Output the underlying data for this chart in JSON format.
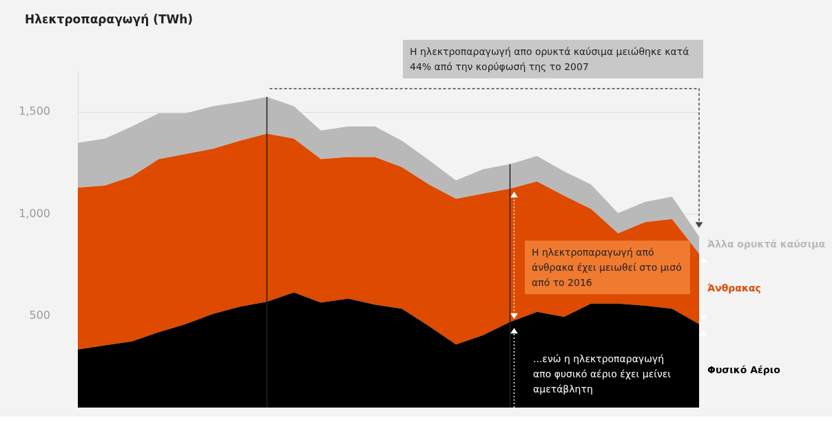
{
  "chart_data": {
    "type": "area",
    "title": "Ηλεκτροπαραγωγή (TWh)",
    "stacked": true,
    "categories": [
      null,
      null,
      null,
      null,
      null,
      null,
      null,
      null,
      null,
      null,
      null,
      null,
      null,
      null,
      null,
      null,
      null,
      null,
      null,
      null,
      null,
      null,
      null,
      null
    ],
    "series": [
      {
        "name": "Φυσικό Αέριο",
        "color": "#000000",
        "values": [
          335,
          355,
          375,
          420,
          460,
          510,
          545,
          570,
          615,
          565,
          585,
          555,
          535,
          450,
          360,
          405,
          470,
          520,
          495,
          560,
          560,
          550,
          535,
          460
        ]
      },
      {
        "name": "Άνθρακας",
        "color": "#dd4a00",
        "values": [
          795,
          785,
          810,
          850,
          835,
          810,
          815,
          825,
          755,
          705,
          695,
          725,
          695,
          695,
          715,
          695,
          655,
          640,
          595,
          465,
          345,
          410,
          440,
          345
        ]
      },
      {
        "name": "Άλλα ορυκτά καύσιμα",
        "color": "#b9b9b9",
        "values": [
          220,
          230,
          245,
          225,
          200,
          210,
          190,
          180,
          160,
          140,
          150,
          150,
          130,
          120,
          90,
          120,
          120,
          125,
          120,
          120,
          100,
          100,
          110,
          85
        ]
      }
    ],
    "ylim": [
      50,
      1700
    ],
    "yticks": [
      {
        "value": 500,
        "label": "500"
      },
      {
        "value": 1000,
        "label": "1,000"
      },
      {
        "value": 1500,
        "label": "1,500"
      }
    ],
    "grid": "y",
    "legend": "right",
    "tick_labels": "y",
    "annotations": [
      "Η ηλεκτροπαραγωγή απο ορυκτά καύσιμα μειώθηκε κατά 44% από την κορύφωσή της το 2007",
      "Η ηλεκτροπαραγωγή από άνθρακα έχει μειωθεί στο μισό από το 2016",
      "...ενώ η ηλεκτροπαραγωγή απο φυσικό αέριο έχει μείνει αμετάβλητη"
    ]
  }
}
